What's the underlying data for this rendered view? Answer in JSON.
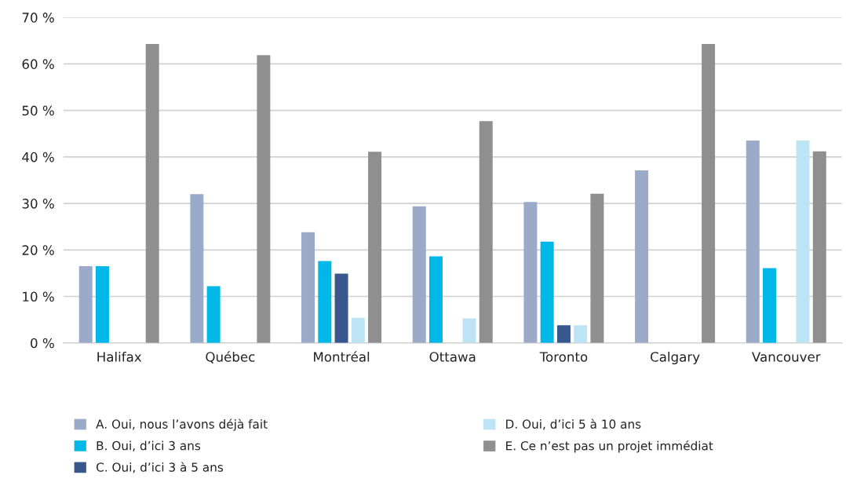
{
  "chart_data": {
    "type": "bar",
    "categories": [
      "Halifax",
      "Québec",
      "Montréal",
      "Ottawa",
      "Toronto",
      "Calgary",
      "Vancouver"
    ],
    "series": [
      {
        "name": "A. Oui, nous l’avons déjà fait",
        "color": "#9aaac8",
        "values": [
          16.5,
          32,
          23.8,
          29.4,
          30.3,
          37.1,
          43.5
        ]
      },
      {
        "name": "B. Oui, d’ici 3 ans",
        "color": "#00b8e8",
        "values": [
          16.5,
          12.2,
          17.6,
          18.6,
          21.8,
          null,
          16.1
        ]
      },
      {
        "name": "C. Oui, d’ici 3 à 5 ans",
        "color": "#38578f",
        "values": [
          null,
          null,
          14.9,
          null,
          3.8,
          null,
          null
        ]
      },
      {
        "name": "D. Oui, d’ici 5 à 10 ans",
        "color": "#bce4f4",
        "values": [
          null,
          null,
          5.4,
          5.3,
          3.8,
          null,
          43.5
        ]
      },
      {
        "name": "E. Ce n’est pas un projet immédiat",
        "color": "#8f8f8f",
        "values": [
          64.3,
          61.9,
          41.1,
          47.7,
          32.1,
          64.3,
          41.2
        ]
      }
    ],
    "ylim": [
      0,
      70
    ],
    "yticks": [
      {
        "value": 0,
        "label": "0 %"
      },
      {
        "value": 10,
        "label": "10 %"
      },
      {
        "value": 20,
        "label": "20 %"
      },
      {
        "value": 30,
        "label": "30 %"
      },
      {
        "value": 40,
        "label": "40 %"
      },
      {
        "value": 50,
        "label": "50 %"
      },
      {
        "value": 60,
        "label": "60 %"
      },
      {
        "value": 70,
        "label": "70 %"
      }
    ],
    "grid": "y",
    "legend": "bottom"
  }
}
